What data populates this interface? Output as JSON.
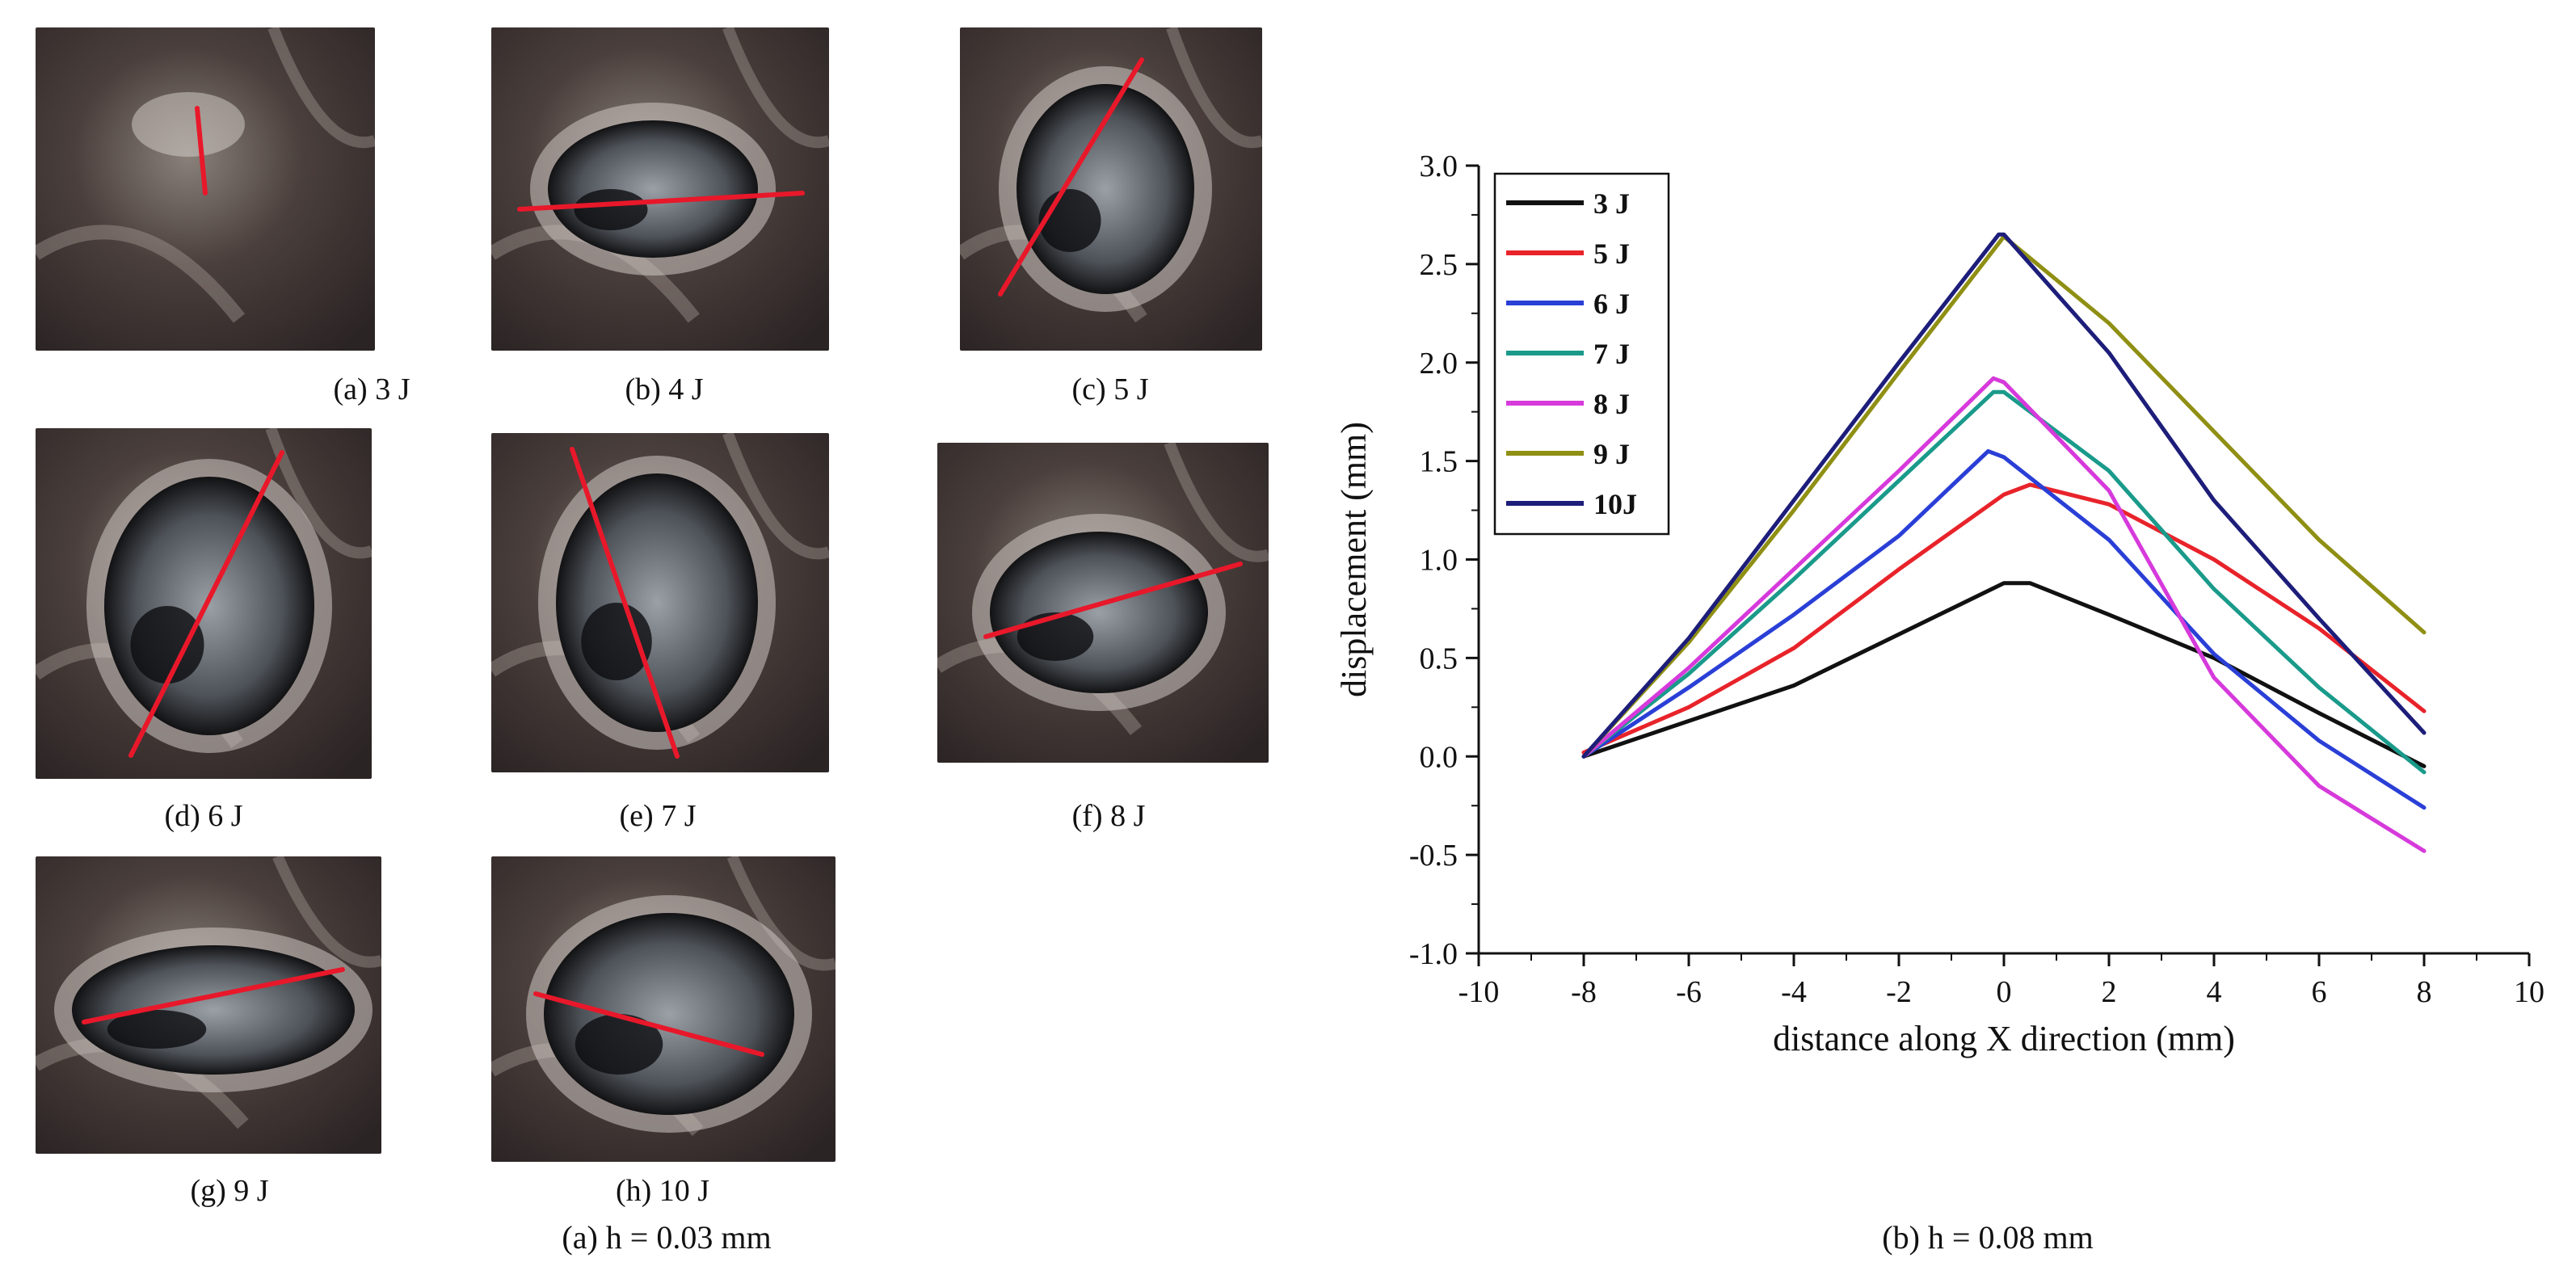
{
  "panel_a_caption": "(a) h = 0.03 mm",
  "panel_b_caption": "(b) h = 0.08 mm",
  "photos": [
    {
      "caption": "(a) 3 J"
    },
    {
      "caption": "(b) 4 J"
    },
    {
      "caption": "(c) 5 J"
    },
    {
      "caption": "(d) 6 J"
    },
    {
      "caption": "(e) 7 J"
    },
    {
      "caption": "(f) 8 J"
    },
    {
      "caption": "(g) 9 J"
    },
    {
      "caption": "(h) 10 J"
    }
  ],
  "chart_data": {
    "type": "line",
    "title": "",
    "xlabel": "distance along X direction (mm)",
    "ylabel": "displacement (mm)",
    "xlim": [
      -10,
      10
    ],
    "ylim": [
      -1.0,
      3.0
    ],
    "xticks": [
      "-10",
      "-8",
      "-6",
      "-4",
      "-2",
      "0",
      "2",
      "4",
      "6",
      "8",
      "10"
    ],
    "yticks": [
      "-1.0",
      "-0.5",
      "0.0",
      "0.5",
      "1.0",
      "1.5",
      "2.0",
      "2.5",
      "3.0"
    ],
    "grid": false,
    "legend_position": "top-left",
    "series": [
      {
        "name": "3 J",
        "color": "#111111",
        "x": [
          -8,
          -6,
          -4,
          -2,
          0,
          0.5,
          2,
          4,
          6,
          8
        ],
        "y": [
          0.0,
          0.18,
          0.36,
          0.62,
          0.88,
          0.88,
          0.72,
          0.5,
          0.22,
          -0.05
        ]
      },
      {
        "name": "5 J",
        "color": "#e8232a",
        "x": [
          -8,
          -6,
          -4,
          -2,
          0,
          0.5,
          2,
          4,
          6,
          8
        ],
        "y": [
          0.02,
          0.25,
          0.55,
          0.95,
          1.33,
          1.38,
          1.28,
          1.0,
          0.65,
          0.23
        ]
      },
      {
        "name": "6 J",
        "color": "#2a3fd6",
        "x": [
          -8,
          -6,
          -4,
          -2,
          -0.3,
          0,
          2,
          4,
          6,
          8
        ],
        "y": [
          0.0,
          0.35,
          0.72,
          1.12,
          1.55,
          1.52,
          1.1,
          0.52,
          0.08,
          -0.26
        ]
      },
      {
        "name": "7 J",
        "color": "#1a9a8a",
        "x": [
          -8,
          -6,
          -4,
          -2,
          -0.2,
          0,
          2,
          4,
          6,
          8
        ],
        "y": [
          0.0,
          0.42,
          0.9,
          1.4,
          1.85,
          1.85,
          1.45,
          0.85,
          0.35,
          -0.08
        ]
      },
      {
        "name": "8 J",
        "color": "#d63adb",
        "x": [
          -8,
          -6,
          -4,
          -2,
          -0.2,
          0,
          2,
          4,
          6,
          8
        ],
        "y": [
          0.0,
          0.45,
          0.95,
          1.45,
          1.92,
          1.9,
          1.35,
          0.4,
          -0.15,
          -0.48
        ]
      },
      {
        "name": "9 J",
        "color": "#8f8f14",
        "x": [
          -8,
          -6,
          -4,
          -2,
          0,
          2,
          4,
          6,
          8
        ],
        "y": [
          0.0,
          0.58,
          1.25,
          1.95,
          2.64,
          2.2,
          1.65,
          1.1,
          0.63
        ]
      },
      {
        "name": "10J",
        "color": "#1d1d7a",
        "x": [
          -8,
          -6,
          -4,
          -2,
          -0.1,
          0,
          2,
          4,
          6,
          8
        ],
        "y": [
          0.0,
          0.6,
          1.3,
          2.0,
          2.65,
          2.65,
          2.05,
          1.3,
          0.7,
          0.12
        ]
      }
    ]
  }
}
